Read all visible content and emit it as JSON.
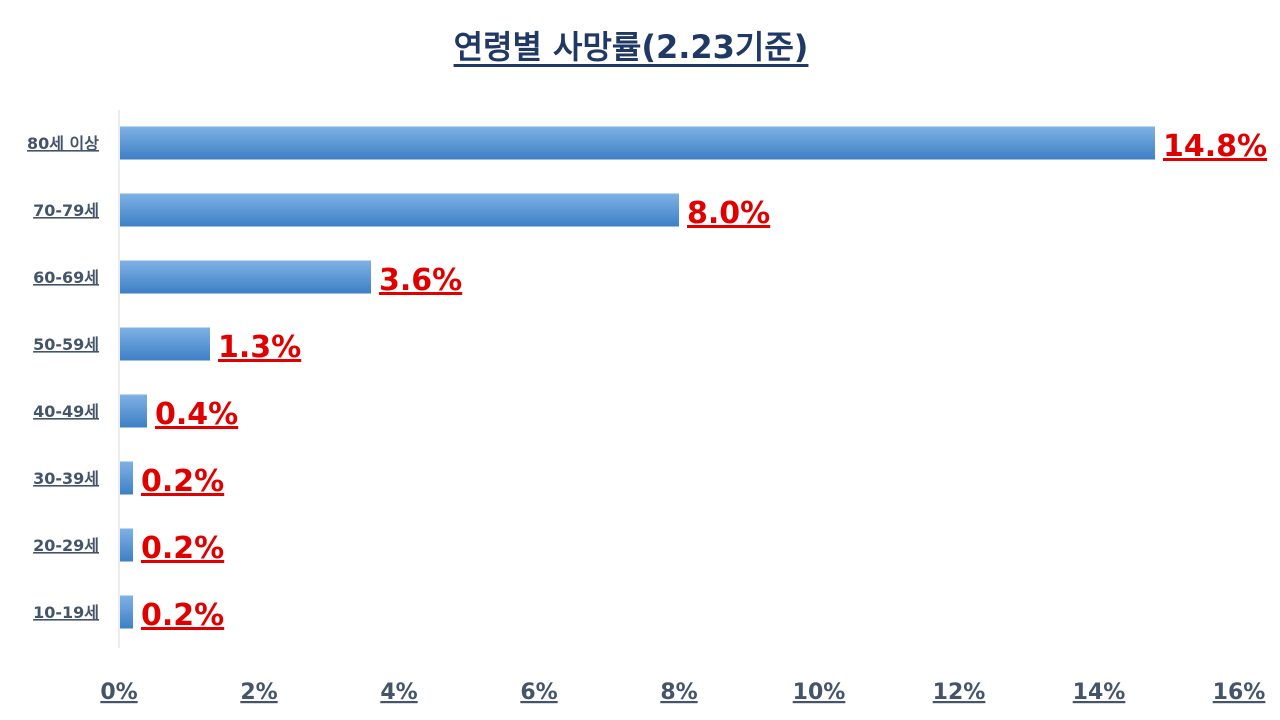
{
  "chart_data": {
    "type": "bar",
    "orientation": "horizontal",
    "title": "연령별 사망률(2.23기준)",
    "categories": [
      "80세 이상",
      "70-79세",
      "60-69세",
      "50-59세",
      "40-49세",
      "30-39세",
      "20-29세",
      "10-19세"
    ],
    "values": [
      14.8,
      8.0,
      3.6,
      1.3,
      0.4,
      0.2,
      0.2,
      0.2
    ],
    "data_labels": [
      "14.8%",
      "8.0%",
      "3.6%",
      "1.3%",
      "0.4%",
      "0.2%",
      "0.2%",
      "0.2%"
    ],
    "xlim": [
      0,
      16
    ],
    "x_ticks": [
      "0%",
      "2%",
      "4%",
      "6%",
      "8%",
      "10%",
      "12%",
      "14%",
      "16%"
    ],
    "xlabel": "",
    "ylabel": "",
    "grid": false,
    "legend": "none",
    "colors": {
      "bar_light": "#7fb2e5",
      "bar_dark": "#3d7fc6",
      "data_label": "#e00000",
      "axis_text": "#44546a",
      "title": "#1f3864",
      "axis_line": "#d9d9d9"
    }
  }
}
